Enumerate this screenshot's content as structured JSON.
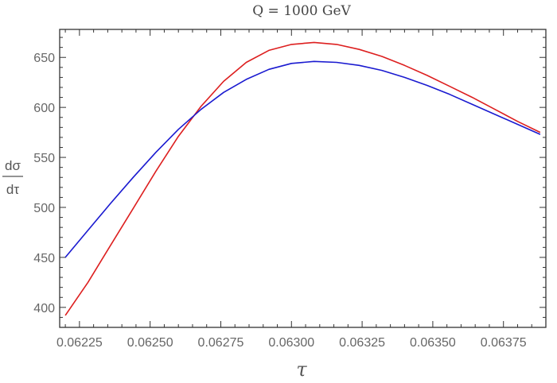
{
  "chart_data": {
    "type": "line",
    "title": "Q = 1000 GeV",
    "xlabel": "τ",
    "ylabel_numerator": "dσ",
    "ylabel_denominator": "dτ",
    "xlim": [
      0.06218,
      0.0639
    ],
    "ylim": [
      380,
      678
    ],
    "xticks": [
      0.06225,
      0.0625,
      0.06275,
      0.063,
      0.06325,
      0.0635,
      0.06375
    ],
    "xtick_labels": [
      "0.06225",
      "0.06250",
      "0.06275",
      "0.06300",
      "0.06325",
      "0.06350",
      "0.06375"
    ],
    "yticks": [
      400,
      450,
      500,
      550,
      600,
      650
    ],
    "ytick_labels": [
      "400",
      "450",
      "500",
      "550",
      "600",
      "650"
    ],
    "grid": false,
    "series": [
      {
        "color": "#dd1f1f",
        "x": [
          0.0622,
          0.06228,
          0.06236,
          0.06244,
          0.06252,
          0.0626,
          0.06268,
          0.06276,
          0.06284,
          0.06292,
          0.063,
          0.06308,
          0.06316,
          0.06324,
          0.06332,
          0.0634,
          0.06348,
          0.06356,
          0.06364,
          0.06372,
          0.0638,
          0.06388
        ],
        "y": [
          392,
          425,
          462,
          499,
          536,
          571,
          601,
          626,
          645,
          657,
          663,
          665,
          663,
          658,
          651,
          642,
          632,
          621,
          610,
          598,
          586,
          575
        ]
      },
      {
        "color": "#1a1ad0",
        "x": [
          0.0622,
          0.06228,
          0.06236,
          0.06244,
          0.06252,
          0.0626,
          0.06268,
          0.06276,
          0.06284,
          0.06292,
          0.063,
          0.06308,
          0.06316,
          0.06324,
          0.06332,
          0.0634,
          0.06348,
          0.06356,
          0.06364,
          0.06372,
          0.0638,
          0.06388
        ],
        "y": [
          450,
          477,
          504,
          530,
          555,
          578,
          598,
          615,
          628,
          638,
          644,
          646,
          645,
          642,
          637,
          630,
          622,
          613,
          603,
          593,
          583,
          573
        ]
      }
    ]
  }
}
